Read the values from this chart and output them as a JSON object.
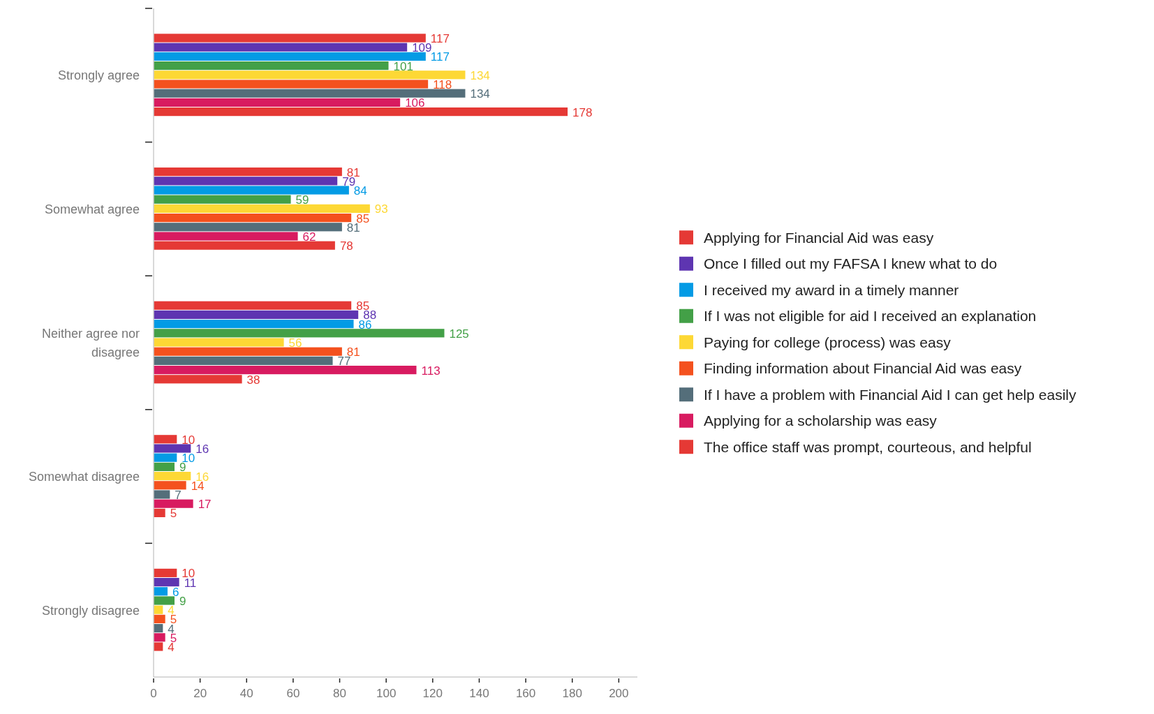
{
  "chart_data": {
    "type": "bar",
    "orientation": "horizontal",
    "categories": [
      "Strongly agree",
      "Somewhat agree",
      "Neither agree nor disagree",
      "Somewhat disagree",
      "Strongly disagree"
    ],
    "series": [
      {
        "name": "Applying for Financial Aid was easy",
        "color": "#e53935",
        "values": [
          117,
          81,
          85,
          10,
          10
        ]
      },
      {
        "name": "Once I filled out my FAFSA I knew what to do",
        "color": "#5e35b1",
        "values": [
          109,
          79,
          88,
          16,
          11
        ]
      },
      {
        "name": "I received my award in a timely manner",
        "color": "#039be5",
        "values": [
          117,
          84,
          86,
          10,
          6
        ]
      },
      {
        "name": "If I was not eligible for aid I received an explanation",
        "color": "#43a047",
        "values": [
          101,
          59,
          125,
          9,
          9
        ]
      },
      {
        "name": "Paying for college (process) was easy",
        "color": "#fdd835",
        "values": [
          134,
          93,
          56,
          16,
          4
        ]
      },
      {
        "name": "Finding information about Financial Aid was easy",
        "color": "#f4511e",
        "values": [
          118,
          85,
          81,
          14,
          5
        ]
      },
      {
        "name": "If I have a problem with Financial Aid I can get help easily",
        "color": "#546e7a",
        "values": [
          134,
          81,
          77,
          7,
          4
        ]
      },
      {
        "name": "Applying for a scholarship was easy",
        "color": "#d81b60",
        "values": [
          106,
          62,
          113,
          17,
          5
        ]
      },
      {
        "name": "The office staff was prompt, courteous, and helpful",
        "color": "#e53935",
        "values": [
          178,
          78,
          38,
          5,
          4
        ]
      }
    ],
    "xlim": [
      0,
      208
    ],
    "xticks": [
      0,
      20,
      40,
      60,
      80,
      100,
      120,
      140,
      160,
      180,
      200
    ],
    "grid": false,
    "legend": "right",
    "data_labels": true
  }
}
